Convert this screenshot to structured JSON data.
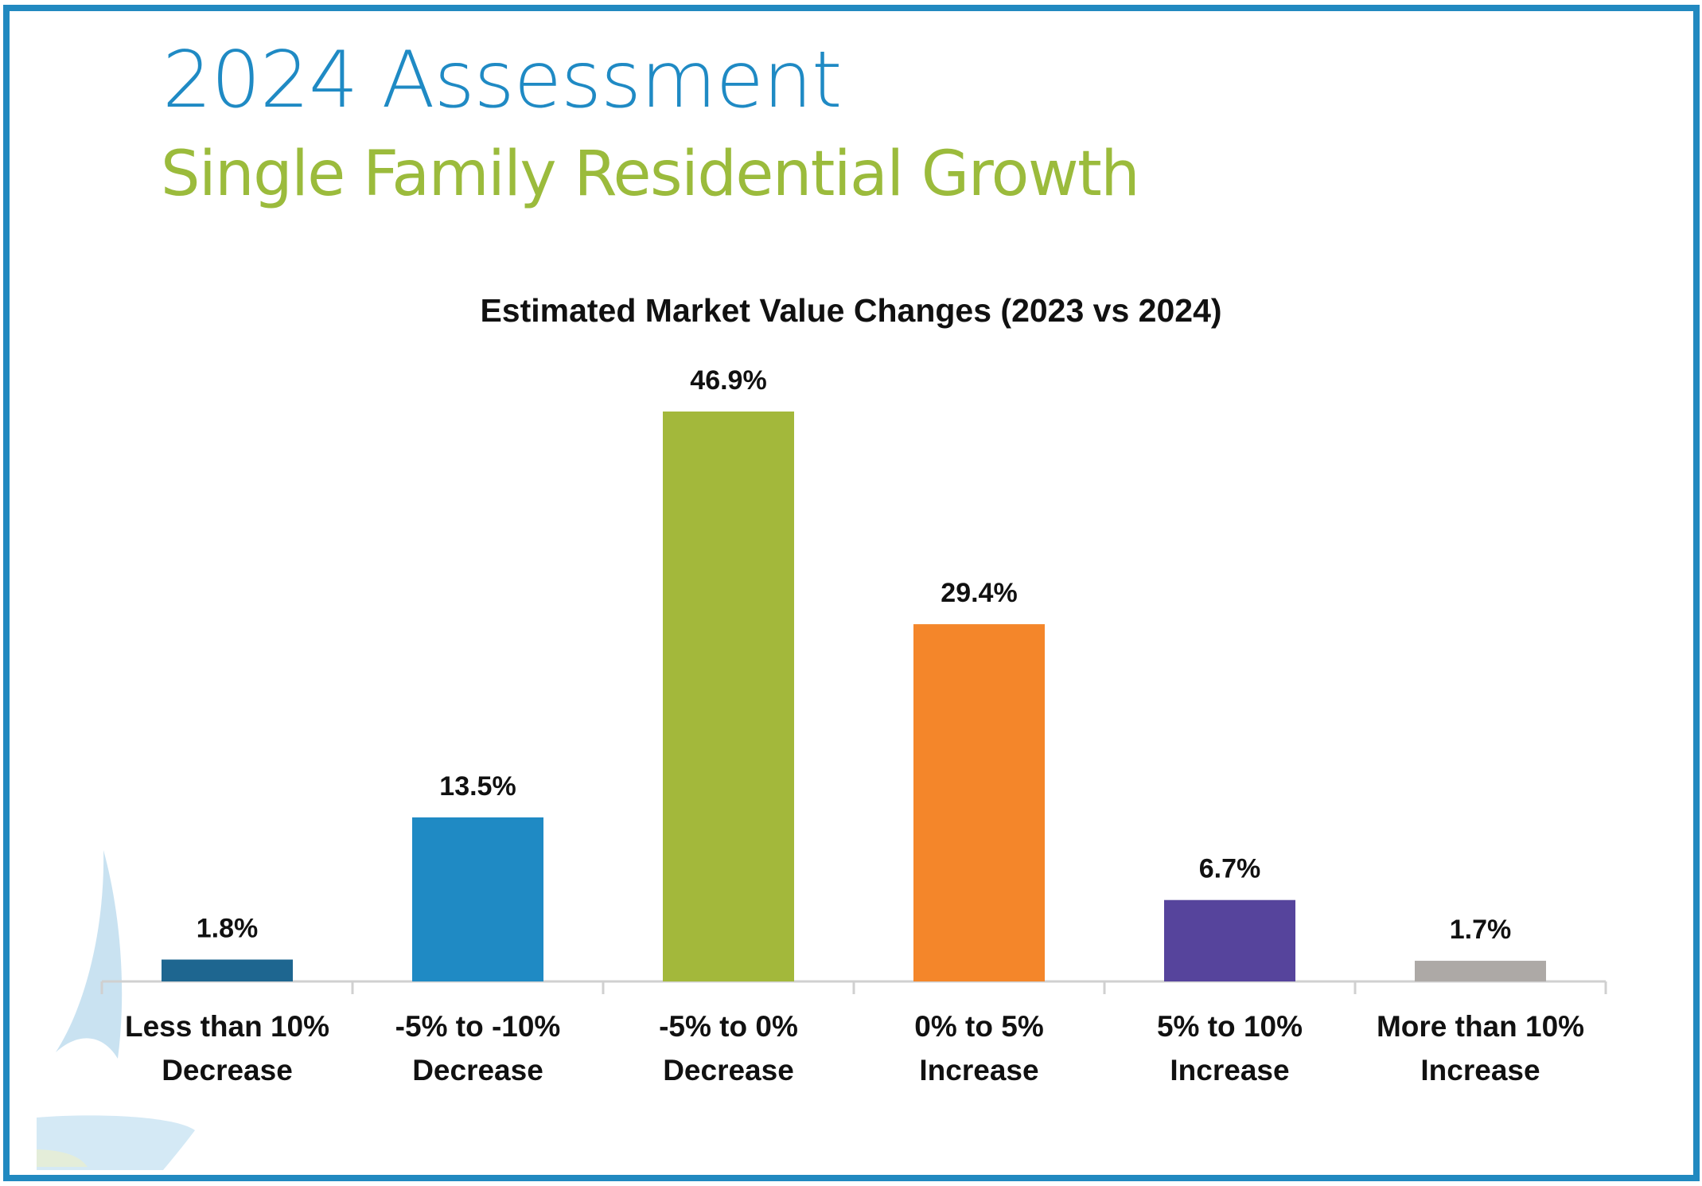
{
  "header": {
    "title": "2024 Assessment",
    "subtitle": "Single Family Residential Growth"
  },
  "colors": {
    "frame_border": "#2189c0",
    "title": "#1f8ac4",
    "subtitle": "#9bbb3c",
    "axis": "#d0d0d0",
    "text": "#111111"
  },
  "watermark": {
    "icon": "sailboat-logo-icon"
  },
  "chart_data": {
    "type": "bar",
    "title": "Estimated Market Value Changes (2023 vs 2024)",
    "xlabel": "",
    "ylabel": "",
    "ylim": [
      0,
      46.9
    ],
    "grid": false,
    "legend": "none",
    "categories": [
      [
        "Less than 10%",
        "Decrease"
      ],
      [
        "-5% to -10%",
        "Decrease"
      ],
      [
        "-5% to 0%",
        "Decrease"
      ],
      [
        "0% to 5%",
        "Increase"
      ],
      [
        "5% to 10%",
        "Increase"
      ],
      [
        "More than 10%",
        "Increase"
      ]
    ],
    "values": [
      1.8,
      13.5,
      46.9,
      29.4,
      6.7,
      1.7
    ],
    "data_labels": [
      "1.8%",
      "13.5%",
      "46.9%",
      "29.4%",
      "6.7%",
      "1.7%"
    ],
    "bar_colors": [
      "#1e6690",
      "#1f8ac4",
      "#a3b83b",
      "#f4862a",
      "#56449c",
      "#ada9a6"
    ]
  }
}
